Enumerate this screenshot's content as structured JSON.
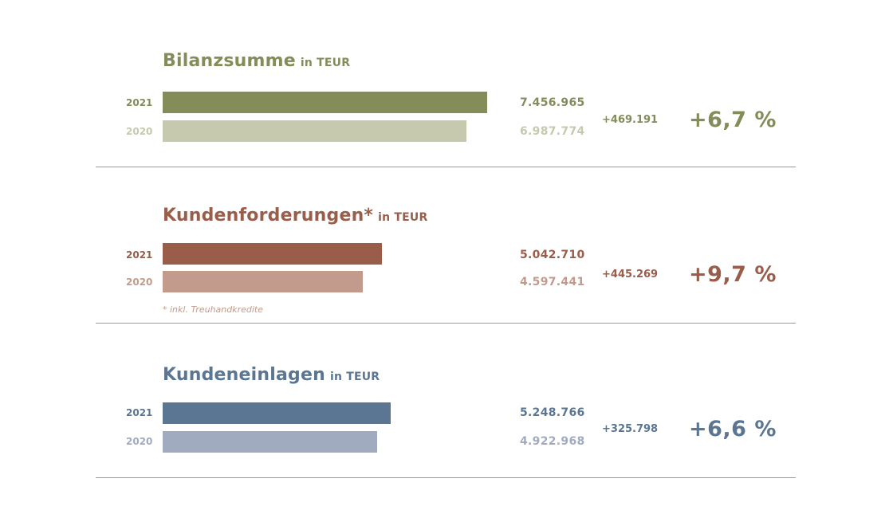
{
  "charts": [
    {
      "title": "Bilanzsumme",
      "unit": "in TEUR",
      "change": "+469.191",
      "percent": "+6,7 %",
      "colors": {
        "main": "#848c5a",
        "light": "#c7c9ae",
        "text": "#848c5a",
        "text_light": "#c7c9ae"
      },
      "rows": [
        {
          "year": "2021",
          "value_label": "7.456.965"
        },
        {
          "year": "2020",
          "value_label": "6.987.774"
        }
      ]
    },
    {
      "title": "Kundenforderungen*",
      "unit": "in TEUR",
      "change": "+445.269",
      "percent": "+9,7 %",
      "footnote": "* inkl. Treuhandkredite",
      "colors": {
        "main": "#995d4a",
        "light": "#c29b8c",
        "text": "#995d4a",
        "text_light": "#c29b8c"
      },
      "rows": [
        {
          "year": "2021",
          "value_label": "5.042.710"
        },
        {
          "year": "2020",
          "value_label": "4.597.441"
        }
      ]
    },
    {
      "title": "Kundeneinlagen",
      "unit": "in TEUR",
      "change": "+325.798",
      "percent": "+6,6 %",
      "colors": {
        "main": "#5b7693",
        "light": "#a1abc0",
        "text": "#5b7693",
        "text_light": "#a1abc0"
      },
      "rows": [
        {
          "year": "2021",
          "value_label": "5.248.766"
        },
        {
          "year": "2020",
          "value_label": "4.922.968"
        }
      ]
    }
  ],
  "chart_data": [
    {
      "type": "bar",
      "title": "Bilanzsumme",
      "ylabel": "in TEUR",
      "categories": [
        "2021",
        "2020"
      ],
      "values": [
        7456965,
        6987774
      ]
    },
    {
      "type": "bar",
      "title": "Kundenforderungen*",
      "ylabel": "in TEUR",
      "categories": [
        "2021",
        "2020"
      ],
      "values": [
        5042710,
        4597441
      ]
    },
    {
      "type": "bar",
      "title": "Kundeneinlagen",
      "ylabel": "in TEUR",
      "categories": [
        "2021",
        "2020"
      ],
      "values": [
        5248766,
        4922968
      ]
    }
  ]
}
